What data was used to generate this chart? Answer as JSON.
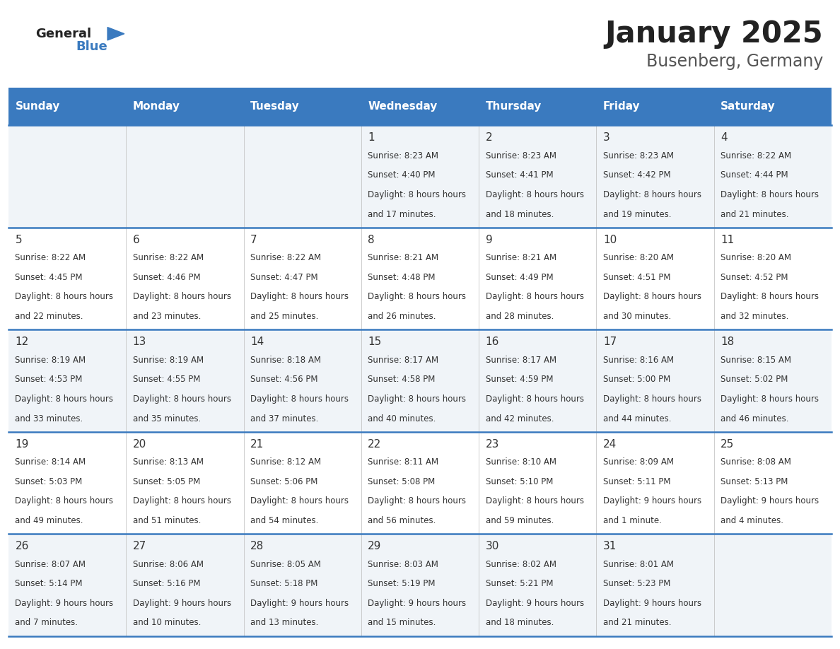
{
  "title": "January 2025",
  "subtitle": "Busenberg, Germany",
  "days_of_week": [
    "Sunday",
    "Monday",
    "Tuesday",
    "Wednesday",
    "Thursday",
    "Friday",
    "Saturday"
  ],
  "header_bg": "#3a7abf",
  "header_text": "#ffffff",
  "row_bg_odd": "#f0f4f8",
  "row_bg_even": "#ffffff",
  "cell_text_color": "#333333",
  "border_color": "#3a7abf",
  "title_color": "#222222",
  "subtitle_color": "#555555",
  "logo_general_color": "#222222",
  "logo_blue_color": "#3a7abf",
  "calendar_data": [
    [
      null,
      null,
      null,
      {
        "day": 1,
        "sunrise": "8:23 AM",
        "sunset": "4:40 PM",
        "daylight": "8 hours and 17 minutes."
      },
      {
        "day": 2,
        "sunrise": "8:23 AM",
        "sunset": "4:41 PM",
        "daylight": "8 hours and 18 minutes."
      },
      {
        "day": 3,
        "sunrise": "8:23 AM",
        "sunset": "4:42 PM",
        "daylight": "8 hours and 19 minutes."
      },
      {
        "day": 4,
        "sunrise": "8:22 AM",
        "sunset": "4:44 PM",
        "daylight": "8 hours and 21 minutes."
      }
    ],
    [
      {
        "day": 5,
        "sunrise": "8:22 AM",
        "sunset": "4:45 PM",
        "daylight": "8 hours and 22 minutes."
      },
      {
        "day": 6,
        "sunrise": "8:22 AM",
        "sunset": "4:46 PM",
        "daylight": "8 hours and 23 minutes."
      },
      {
        "day": 7,
        "sunrise": "8:22 AM",
        "sunset": "4:47 PM",
        "daylight": "8 hours and 25 minutes."
      },
      {
        "day": 8,
        "sunrise": "8:21 AM",
        "sunset": "4:48 PM",
        "daylight": "8 hours and 26 minutes."
      },
      {
        "day": 9,
        "sunrise": "8:21 AM",
        "sunset": "4:49 PM",
        "daylight": "8 hours and 28 minutes."
      },
      {
        "day": 10,
        "sunrise": "8:20 AM",
        "sunset": "4:51 PM",
        "daylight": "8 hours and 30 minutes."
      },
      {
        "day": 11,
        "sunrise": "8:20 AM",
        "sunset": "4:52 PM",
        "daylight": "8 hours and 32 minutes."
      }
    ],
    [
      {
        "day": 12,
        "sunrise": "8:19 AM",
        "sunset": "4:53 PM",
        "daylight": "8 hours and 33 minutes."
      },
      {
        "day": 13,
        "sunrise": "8:19 AM",
        "sunset": "4:55 PM",
        "daylight": "8 hours and 35 minutes."
      },
      {
        "day": 14,
        "sunrise": "8:18 AM",
        "sunset": "4:56 PM",
        "daylight": "8 hours and 37 minutes."
      },
      {
        "day": 15,
        "sunrise": "8:17 AM",
        "sunset": "4:58 PM",
        "daylight": "8 hours and 40 minutes."
      },
      {
        "day": 16,
        "sunrise": "8:17 AM",
        "sunset": "4:59 PM",
        "daylight": "8 hours and 42 minutes."
      },
      {
        "day": 17,
        "sunrise": "8:16 AM",
        "sunset": "5:00 PM",
        "daylight": "8 hours and 44 minutes."
      },
      {
        "day": 18,
        "sunrise": "8:15 AM",
        "sunset": "5:02 PM",
        "daylight": "8 hours and 46 minutes."
      }
    ],
    [
      {
        "day": 19,
        "sunrise": "8:14 AM",
        "sunset": "5:03 PM",
        "daylight": "8 hours and 49 minutes."
      },
      {
        "day": 20,
        "sunrise": "8:13 AM",
        "sunset": "5:05 PM",
        "daylight": "8 hours and 51 minutes."
      },
      {
        "day": 21,
        "sunrise": "8:12 AM",
        "sunset": "5:06 PM",
        "daylight": "8 hours and 54 minutes."
      },
      {
        "day": 22,
        "sunrise": "8:11 AM",
        "sunset": "5:08 PM",
        "daylight": "8 hours and 56 minutes."
      },
      {
        "day": 23,
        "sunrise": "8:10 AM",
        "sunset": "5:10 PM",
        "daylight": "8 hours and 59 minutes."
      },
      {
        "day": 24,
        "sunrise": "8:09 AM",
        "sunset": "5:11 PM",
        "daylight": "9 hours and 1 minute."
      },
      {
        "day": 25,
        "sunrise": "8:08 AM",
        "sunset": "5:13 PM",
        "daylight": "9 hours and 4 minutes."
      }
    ],
    [
      {
        "day": 26,
        "sunrise": "8:07 AM",
        "sunset": "5:14 PM",
        "daylight": "9 hours and 7 minutes."
      },
      {
        "day": 27,
        "sunrise": "8:06 AM",
        "sunset": "5:16 PM",
        "daylight": "9 hours and 10 minutes."
      },
      {
        "day": 28,
        "sunrise": "8:05 AM",
        "sunset": "5:18 PM",
        "daylight": "9 hours and 13 minutes."
      },
      {
        "day": 29,
        "sunrise": "8:03 AM",
        "sunset": "5:19 PM",
        "daylight": "9 hours and 15 minutes."
      },
      {
        "day": 30,
        "sunrise": "8:02 AM",
        "sunset": "5:21 PM",
        "daylight": "9 hours and 18 minutes."
      },
      {
        "day": 31,
        "sunrise": "8:01 AM",
        "sunset": "5:23 PM",
        "daylight": "9 hours and 21 minutes."
      },
      null
    ]
  ]
}
